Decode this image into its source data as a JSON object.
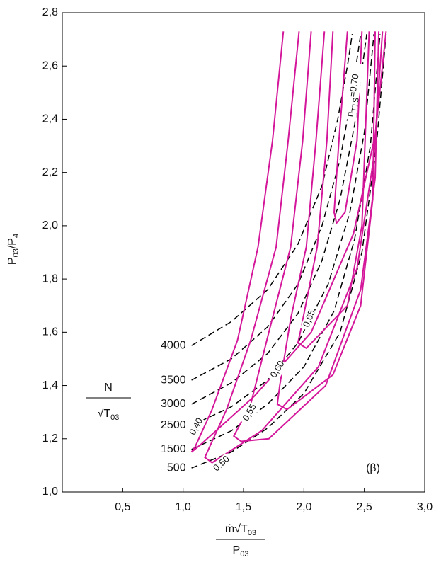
{
  "chart_data": {
    "type": "line",
    "xlim": [
      0,
      3.0
    ],
    "ylim": [
      1.0,
      2.8
    ],
    "xticks": [
      {
        "value": 0.5,
        "label": "0,5"
      },
      {
        "value": 1.0,
        "label": "1,0"
      },
      {
        "value": 1.5,
        "label": "1,5"
      },
      {
        "value": 2.0,
        "label": "2,0"
      },
      {
        "value": 2.5,
        "label": "2,5"
      },
      {
        "value": 3.0,
        "label": "3,0"
      }
    ],
    "yticks": [
      {
        "value": 1.0,
        "label": "1,0"
      },
      {
        "value": 1.2,
        "label": "1,2"
      },
      {
        "value": 1.4,
        "label": "1,4"
      },
      {
        "value": 1.6,
        "label": "1,6"
      },
      {
        "value": 1.8,
        "label": "1,8"
      },
      {
        "value": 2.0,
        "label": "2,0"
      },
      {
        "value": 2.2,
        "label": "2,2"
      },
      {
        "value": 2.4,
        "label": "2,4"
      },
      {
        "value": 2.6,
        "label": "2,6"
      },
      {
        "value": 2.8,
        "label": "2,8"
      }
    ],
    "ylabel": [
      "P",
      "03",
      "/P",
      "4"
    ],
    "xlabel": {
      "numerator": [
        "ṁ√T",
        "03"
      ],
      "denominator": [
        "P",
        "03"
      ]
    },
    "speed_label": {
      "numerator": "N",
      "denominator": [
        "√T",
        "03"
      ]
    },
    "panel_label": "(β)",
    "efficiency_symbol": [
      "n",
      "TTS"
    ],
    "series": [
      {
        "name": "4000",
        "style": "dashed",
        "color": "#000000",
        "x": [
          1.07,
          1.4,
          1.7,
          1.95,
          2.15,
          2.28,
          2.36,
          2.4
        ],
        "values": [
          1.55,
          1.64,
          1.76,
          1.93,
          2.15,
          2.4,
          2.6,
          2.72
        ]
      },
      {
        "name": "3500",
        "style": "dashed",
        "color": "#000000",
        "x": [
          1.07,
          1.4,
          1.7,
          1.95,
          2.15,
          2.3,
          2.4,
          2.47
        ],
        "values": [
          1.42,
          1.5,
          1.62,
          1.78,
          2.0,
          2.25,
          2.5,
          2.72
        ]
      },
      {
        "name": "3000",
        "style": "dashed",
        "color": "#000000",
        "x": [
          1.07,
          1.4,
          1.7,
          1.95,
          2.15,
          2.3,
          2.42,
          2.52
        ],
        "values": [
          1.33,
          1.41,
          1.52,
          1.67,
          1.87,
          2.1,
          2.38,
          2.72
        ]
      },
      {
        "name": "2500",
        "style": "dashed",
        "color": "#000000",
        "x": [
          1.07,
          1.4,
          1.7,
          1.95,
          2.2,
          2.38,
          2.5,
          2.58
        ],
        "values": [
          1.25,
          1.32,
          1.42,
          1.56,
          1.78,
          2.05,
          2.35,
          2.72
        ]
      },
      {
        "name": "1500",
        "style": "dashed",
        "color": "#000000",
        "x": [
          1.07,
          1.4,
          1.7,
          2.0,
          2.25,
          2.42,
          2.55,
          2.63
        ],
        "values": [
          1.16,
          1.23,
          1.33,
          1.47,
          1.68,
          1.95,
          2.3,
          2.72
        ]
      },
      {
        "name": "500",
        "style": "dashed",
        "color": "#000000",
        "x": [
          1.07,
          1.4,
          1.7,
          2.0,
          2.3,
          2.48,
          2.6,
          2.68
        ],
        "values": [
          1.09,
          1.15,
          1.24,
          1.37,
          1.6,
          1.9,
          2.3,
          2.72
        ]
      },
      {
        "name": "0,40",
        "style": "solid",
        "color": "#d4169a",
        "x": [
          1.83,
          1.74,
          1.62,
          1.45,
          1.24,
          1.1,
          1.07,
          1.15,
          1.59,
          2.06,
          2.41,
          2.59,
          2.68
        ],
        "values": [
          2.73,
          2.32,
          1.92,
          1.57,
          1.31,
          1.17,
          1.15,
          1.18,
          1.36,
          1.6,
          1.97,
          2.34,
          2.73
        ]
      },
      {
        "name": "0,50",
        "style": "solid",
        "color": "#d4169a",
        "x": [
          1.96,
          1.87,
          1.77,
          1.56,
          1.36,
          1.18,
          1.24,
          1.65,
          2.12,
          2.44,
          2.58,
          2.65
        ],
        "values": [
          2.73,
          2.32,
          1.92,
          1.57,
          1.31,
          1.13,
          1.11,
          1.23,
          1.47,
          1.84,
          2.26,
          2.73
        ]
      },
      {
        "name": "0,55",
        "style": "solid",
        "color": "#d4169a",
        "x": [
          2.06,
          1.99,
          1.89,
          1.71,
          1.56,
          1.42,
          1.48,
          1.71,
          2.18,
          2.47,
          2.59,
          2.62
        ],
        "values": [
          2.73,
          2.32,
          1.92,
          1.6,
          1.33,
          1.21,
          1.19,
          1.2,
          1.4,
          1.76,
          2.18,
          2.73
        ]
      },
      {
        "name": "0,60",
        "style": "solid",
        "color": "#d4169a",
        "x": [
          2.17,
          2.1,
          2.02,
          1.89,
          1.8,
          1.78,
          1.86,
          2.24,
          2.47,
          2.57,
          2.59
        ],
        "values": [
          2.73,
          2.32,
          1.92,
          1.65,
          1.4,
          1.33,
          1.31,
          1.44,
          1.7,
          2.1,
          2.73
        ]
      },
      {
        "name": "0,65",
        "style": "solid",
        "color": "#d4169a",
        "x": [
          2.24,
          2.19,
          2.11,
          1.97,
          1.95,
          2.02,
          2.36,
          2.48,
          2.54
        ],
        "values": [
          2.73,
          2.32,
          1.92,
          1.6,
          1.56,
          1.54,
          1.7,
          2.0,
          2.73
        ]
      },
      {
        "name": "=0,70",
        "style": "solid",
        "color": "#d4169a",
        "x": [
          2.36,
          2.29,
          2.25,
          2.27,
          2.34,
          2.44,
          2.48
        ],
        "values": [
          2.73,
          2.32,
          2.05,
          2.01,
          2.05,
          2.32,
          2.73
        ]
      }
    ]
  }
}
